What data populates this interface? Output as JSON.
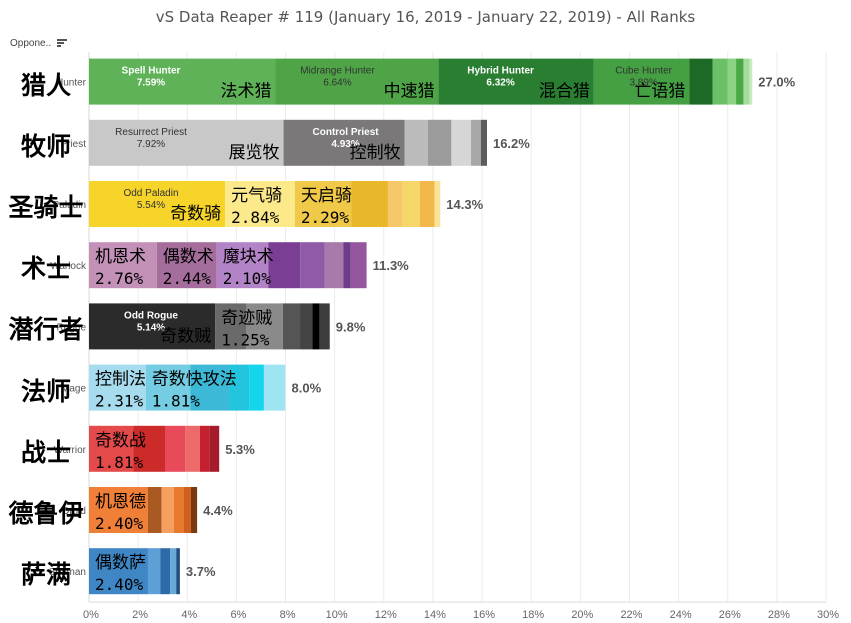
{
  "header": {
    "title": "vS Data Reaper # 119 (January 16, 2019 - January 22, 2019) - All Ranks",
    "opponent_label": "Oppone..",
    "sort_icon": "sort-descending-icon"
  },
  "chart_data": {
    "type": "bar",
    "orientation": "horizontal",
    "stacked": true,
    "categories": [
      "Hunter",
      "Priest",
      "Paladin",
      "Warlock",
      "Rogue",
      "Mage",
      "Warrior",
      "Druid",
      "Shaman"
    ],
    "category_labels_cn": [
      "猎人",
      "牧师",
      "圣骑士",
      "术士",
      "潜行者",
      "法师",
      "战士",
      "德鲁伊",
      "萨满"
    ],
    "totals": [
      "27.0%",
      "16.2%",
      "14.3%",
      "11.3%",
      "9.8%",
      "8.0%",
      "5.3%",
      "4.4%",
      "3.7%"
    ],
    "values": [
      27.0,
      16.2,
      14.3,
      11.3,
      9.8,
      8.0,
      5.3,
      4.4,
      3.7
    ],
    "xlim": [
      0,
      30
    ],
    "xticks": [
      "0%",
      "2%",
      "4%",
      "6%",
      "8%",
      "10%",
      "12%",
      "14%",
      "16%",
      "18%",
      "20%",
      "22%",
      "24%",
      "26%",
      "28%",
      "30%"
    ],
    "grid": true,
    "rows": [
      {
        "segments": [
          {
            "value": 7.59,
            "color": "#5fb257",
            "name": "Spell Hunter",
            "pct": "7.59%",
            "cn": "法术猎",
            "light": true
          },
          {
            "value": 6.64,
            "color": "#4ea447",
            "name": "Midrange Hunter",
            "pct": "6.64%",
            "cn": "中速猎",
            "light": false
          },
          {
            "value": 6.32,
            "color": "#2a7e31",
            "name": "Hybrid Hunter",
            "pct": "6.32%",
            "cn": "混合猎",
            "light": true
          },
          {
            "value": 3.89,
            "color": "#44a043",
            "name": "Cube Hunter",
            "pct": "3.89%",
            "cn": "亡语猎",
            "light": false
          },
          {
            "value": 0.95,
            "color": "#1d6a27"
          },
          {
            "value": 0.6,
            "color": "#6bc065"
          },
          {
            "value": 0.35,
            "color": "#8cd284"
          },
          {
            "value": 0.3,
            "color": "#4aa845"
          },
          {
            "value": 0.25,
            "color": "#a6dd9c"
          },
          {
            "value": 0.11,
            "color": "#c9ecc0"
          }
        ]
      },
      {
        "segments": [
          {
            "value": 7.92,
            "color": "#c8c8c8",
            "name": "Resurrect Priest",
            "pct": "7.92%",
            "cn": "展览牧",
            "light": false
          },
          {
            "value": 4.93,
            "color": "#7a7878",
            "name": "Control Priest",
            "pct": "4.93%",
            "cn": "控制牧",
            "light": true
          },
          {
            "value": 0.95,
            "color": "#bbbbbb"
          },
          {
            "value": 0.95,
            "color": "#9b9b9b"
          },
          {
            "value": 0.8,
            "color": "#d6d6d6"
          },
          {
            "value": 0.4,
            "color": "#a8a8a8"
          },
          {
            "value": 0.25,
            "color": "#5c5c5c"
          }
        ]
      },
      {
        "segments": [
          {
            "value": 5.54,
            "color": "#f6d42a",
            "name": "Odd Paladin",
            "pct": "5.54%",
            "cn": "奇数骑",
            "light": false
          },
          {
            "value": 2.84,
            "color": "#fbe98a",
            "cn": "元气骑",
            "pct": "2.84%"
          },
          {
            "value": 2.29,
            "color": "#f0c948",
            "cn": "天启骑",
            "pct": "2.29%"
          },
          {
            "value": 1.5,
            "color": "#e9b82a"
          },
          {
            "value": 0.6,
            "color": "#f5c86a"
          },
          {
            "value": 0.7,
            "color": "#f6d76a"
          },
          {
            "value": 0.6,
            "color": "#f2b94a"
          },
          {
            "value": 0.23,
            "color": "#fbe39a"
          }
        ]
      },
      {
        "segments": [
          {
            "value": 2.76,
            "color": "#c391b8",
            "cn": "机恩术",
            "pct": "2.76%"
          },
          {
            "value": 2.44,
            "color": "#a56d9c",
            "cn": "偶数术",
            "pct": "2.44%"
          },
          {
            "value": 2.1,
            "color": "#b283c7",
            "cn": "魔块术",
            "pct": "2.10%"
          },
          {
            "value": 1.3,
            "color": "#7a3f95"
          },
          {
            "value": 1.0,
            "color": "#8f5aa8"
          },
          {
            "value": 0.75,
            "color": "#a979ab"
          },
          {
            "value": 0.3,
            "color": "#6e3c88"
          },
          {
            "value": 0.65,
            "color": "#94569c"
          }
        ]
      },
      {
        "segments": [
          {
            "value": 5.14,
            "color": "#2b2b2b",
            "name": "Odd Rogue",
            "pct": "5.14%",
            "cn": "奇数贼",
            "light": true
          },
          {
            "value": 1.25,
            "color": "#6a6a6a",
            "cn": "奇迹贼",
            "pct": "1.25%"
          },
          {
            "value": 1.5,
            "color": "#8a8a8a"
          },
          {
            "value": 0.7,
            "color": "#555555"
          },
          {
            "value": 0.5,
            "color": "#444444"
          },
          {
            "value": 0.3,
            "color": "#000000"
          },
          {
            "value": 0.41,
            "color": "#3c3c3c"
          }
        ]
      },
      {
        "segments": [
          {
            "value": 2.31,
            "color": "#a6dced",
            "cn": "控制法",
            "pct": "2.31%"
          },
          {
            "value": 1.81,
            "color": "#74cde3",
            "cn": "奇数快攻法",
            "pct": "1.81%"
          },
          {
            "value": 1.6,
            "color": "#3cb9d6"
          },
          {
            "value": 0.8,
            "color": "#22c5dd"
          },
          {
            "value": 0.6,
            "color": "#14d5ec"
          },
          {
            "value": 0.87,
            "color": "#9ee4f3"
          }
        ]
      },
      {
        "segments": [
          {
            "value": 1.81,
            "color": "#e44a4a",
            "cn": "奇数战",
            "pct": "1.81%"
          },
          {
            "value": 1.3,
            "color": "#cd2a2a"
          },
          {
            "value": 0.8,
            "color": "#e84a5a"
          },
          {
            "value": 0.6,
            "color": "#ec6a6a"
          },
          {
            "value": 0.4,
            "color": "#c42030"
          },
          {
            "value": 0.39,
            "color": "#a41c2a"
          }
        ]
      },
      {
        "segments": [
          {
            "value": 2.4,
            "color": "#f08038",
            "cn": "机恩德",
            "pct": "2.40%"
          },
          {
            "value": 0.55,
            "color": "#a85a22"
          },
          {
            "value": 0.5,
            "color": "#f5a060"
          },
          {
            "value": 0.4,
            "color": "#e87a30"
          },
          {
            "value": 0.3,
            "color": "#d06020"
          },
          {
            "value": 0.25,
            "color": "#7a3a10"
          }
        ]
      },
      {
        "segments": [
          {
            "value": 2.4,
            "color": "#3f86c5",
            "cn": "偶数萨",
            "pct": "2.40%"
          },
          {
            "value": 0.5,
            "color": "#5ea0d6"
          },
          {
            "value": 0.4,
            "color": "#2d6aa8"
          },
          {
            "value": 0.25,
            "color": "#6aa8d8"
          },
          {
            "value": 0.15,
            "color": "#1f4f82"
          }
        ]
      }
    ]
  }
}
